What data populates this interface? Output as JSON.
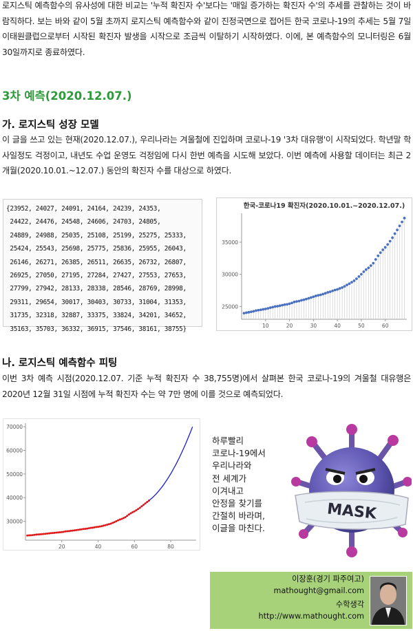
{
  "intro_paragraph": "로지스틱 예측함수의 유사성에 대한 비교는 '누적 확진자 수'보다는 '매일 증가하는 확진자 수'의 추세를 관찰하는 것이 바람직하다. 보는 바와 같이 5월 초까지 로지스틱 예측함수와 같이 진정국면으로 접어든 한국 코로나-19의 추세는 5월 7일 이태원클럽으로부터 시작된 확진자 발생을 시작으로 조금씩 이탈하기 시작하였다. 이에, 본 예측함수의 모니터링은 6월 30일까지로 종료하였다.",
  "section_title": "3차 예측(2020.12.07.)",
  "sub_a_title": "가. 로지스틱 성장 모델",
  "sub_a_paragraph": "이 글을 쓰고 있는 현재(2020.12.07.), 우리나라는 겨울철에 진입하며 코로나-19 '3차 대유행'이 시작되었다. 학년말 학사일정도 걱정이고, 내년도 수업 운영도 걱정임에 다시 한번 예측을 시도해 보았다. 이번 예측에 사용할 데이터는 최근 2개월(2020.10.01.~12.07.) 동안의 확진자 수를 대상으로 하였다.",
  "code_lines": [
    "{23952, 24027, 24091, 24164, 24239, 24353,",
    " 24422, 24476, 24548, 24606, 24703, 24805,",
    " 24889, 24988, 25035, 25108, 25199, 25275, 25333,",
    " 25424, 25543, 25698, 25775, 25836, 25955, 26043,",
    " 26146, 26271, 26385, 26511, 26635, 26732, 26807,",
    " 26925, 27050, 27195, 27284, 27427, 27553, 27653,",
    " 27799, 27942, 28133, 28338, 28546, 28769, 28998,",
    " 29311, 29654, 30017, 30403, 30733, 31004, 31353,",
    " 31735, 32318, 32887, 33375, 33824, 34201, 34652,",
    " 35163, 35703, 36332, 36915, 37546, 38161, 38755}"
  ],
  "sub_b_title": "나. 로지스틱 예측함수 피팅",
  "sub_b_paragraph": "이번 3차 예측 시점(2020.12.07. 기준 누적 확진자 수 38,755명)에서 살펴본 한국 코로나-19의 겨울철 대유행은 2020년 12월 31일 시점에 누적 확진자 수는 약 7만 명에 이를 것으로 예측되었다.",
  "closing_message": [
    "하루빨리",
    "코로나-19에서",
    "우리나라와",
    "전 세계가",
    "이겨내고",
    "안정을 찾기를",
    "간절히 바라며,",
    "이글을 마친다."
  ],
  "mask_label": "MASK",
  "author": {
    "name": "이장훈(경기 파주여고)",
    "email": "mathought@gmail.com",
    "site_name": "수학생각",
    "url": "http://www.mathought.com"
  },
  "colors": {
    "section_green": "#2e9a3a",
    "scatter_blue": "#4a70c0",
    "fit_blue": "#1b1bd0",
    "data_red": "#e01818",
    "author_bg": "#a8d27a"
  },
  "chart_data": [
    {
      "type": "scatter",
      "title": "한국-코로나19 확진자(2020.10.01.~2020.12.07.)",
      "x_ticks": [
        10,
        20,
        30,
        40,
        50,
        60
      ],
      "y_ticks": [
        25000,
        30000,
        35000
      ],
      "xlim": [
        0,
        69
      ],
      "ylim": [
        23000,
        39500
      ],
      "stems": true,
      "values": [
        23952,
        24027,
        24091,
        24164,
        24239,
        24353,
        24422,
        24476,
        24548,
        24606,
        24703,
        24805,
        24889,
        24988,
        25035,
        25108,
        25199,
        25275,
        25333,
        25424,
        25543,
        25698,
        25775,
        25836,
        25955,
        26043,
        26146,
        26271,
        26385,
        26511,
        26635,
        26732,
        26807,
        26925,
        27050,
        27195,
        27284,
        27427,
        27553,
        27653,
        27799,
        27942,
        28133,
        28338,
        28546,
        28769,
        28998,
        29311,
        29654,
        30017,
        30403,
        30733,
        31004,
        31353,
        31735,
        32318,
        32887,
        33375,
        33824,
        34201,
        34652,
        35163,
        35703,
        36332,
        36915,
        37546,
        38161,
        38755
      ]
    },
    {
      "type": "line",
      "x_ticks": [
        20,
        40,
        60,
        80
      ],
      "y_ticks": [
        30000,
        40000,
        50000,
        60000,
        70000
      ],
      "xlim": [
        0,
        94
      ],
      "ylim": [
        22000,
        71500
      ],
      "fit_end": {
        "x": 92,
        "y": 70000
      },
      "series": [
        {
          "kind": "data",
          "color": "red"
        },
        {
          "kind": "logistic-fit",
          "color": "blue"
        }
      ]
    }
  ]
}
